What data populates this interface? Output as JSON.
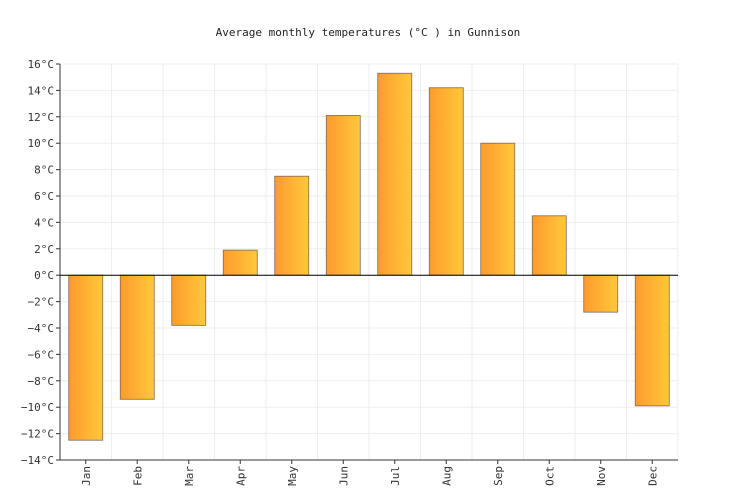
{
  "chart_data": {
    "type": "bar",
    "title": "Average monthly temperatures (°C ) in Gunnison",
    "xlabel": "",
    "ylabel": "",
    "categories": [
      "Jan",
      "Feb",
      "Mar",
      "Apr",
      "May",
      "Jun",
      "Jul",
      "Aug",
      "Sep",
      "Oct",
      "Nov",
      "Dec"
    ],
    "values": [
      -12.5,
      -9.4,
      -3.8,
      1.9,
      7.5,
      12.1,
      15.3,
      14.2,
      10.0,
      4.5,
      -2.8,
      -9.9
    ],
    "ylim": [
      -14,
      16
    ],
    "yticks": [
      16,
      14,
      12,
      10,
      8,
      6,
      4,
      2,
      0,
      -2,
      -4,
      -6,
      -8,
      -10,
      -12,
      -14
    ],
    "ytick_labels": [
      "16°C",
      "14°C",
      "12°C",
      "10°C",
      "8°C",
      "6°C",
      "4°C",
      "2°C",
      "0°C",
      "−2°C",
      "−4°C",
      "−6°C",
      "−8°C",
      "−10°C",
      "−12°C",
      "−14°C"
    ],
    "grid": true,
    "colors": {
      "bar_left": "#ff9a2e",
      "bar_right": "#ffc83a",
      "grid": "#eeeeee"
    }
  }
}
